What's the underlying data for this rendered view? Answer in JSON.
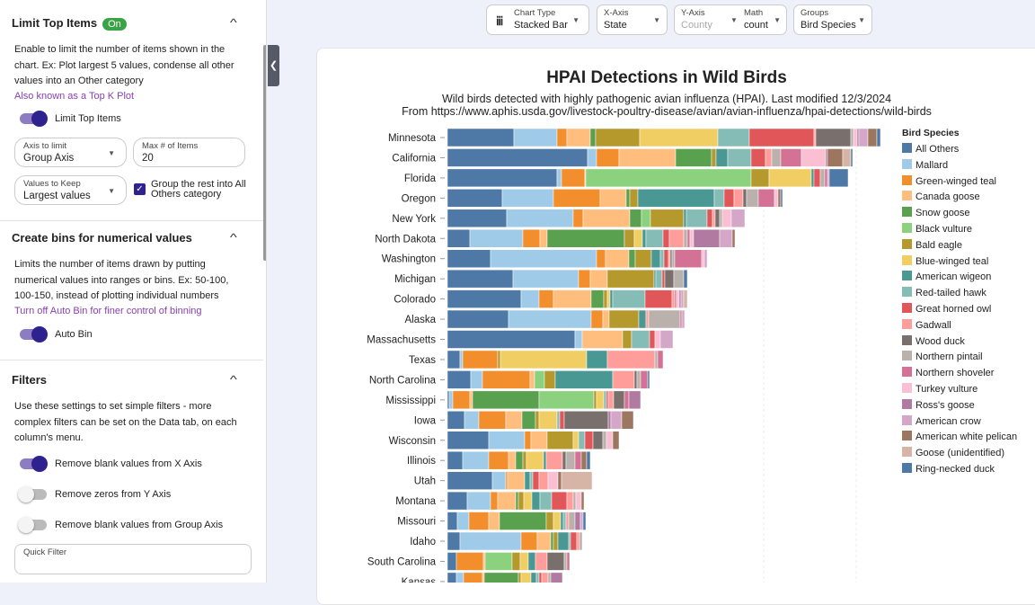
{
  "left_panel": {
    "limit": {
      "title": "Limit Top Items",
      "badge": "On",
      "desc": "Enable to limit the number of items shown in the chart. Ex: Plot largest 5 values, condense all other values into an Other category",
      "link": "Also known as a Top K Plot",
      "toggle_label": "Limit Top Items",
      "toggle_on": true,
      "axis_label": "Axis to limit",
      "axis_value": "Group Axis",
      "max_label": "Max # of Items",
      "max_value": "20",
      "keep_label": "Values to Keep",
      "keep_value": "Largest values",
      "group_rest_label": "Group the rest into All Others category",
      "group_rest_checked": true
    },
    "bins": {
      "title": "Create bins for numerical values",
      "desc": "Limits the number of items drawn by putting numerical values into ranges or bins. Ex: 50-100, 100-150, instead of plotting individual numbers",
      "link": "Turn off Auto Bin for finer control of binning",
      "toggle_label": "Auto Bin",
      "toggle_on": true
    },
    "filters": {
      "title": "Filters",
      "desc": "Use these settings to set simple filters - more complex filters can be set on the Data tab, on each column's menu.",
      "toggles": [
        {
          "label": "Remove blank values from X Axis",
          "on": true
        },
        {
          "label": "Remove zeros from Y Axis",
          "on": false
        },
        {
          "label": "Remove blank values from Group Axis",
          "on": false
        }
      ],
      "quick_filter_label": "Quick Filter"
    }
  },
  "toolbar": {
    "chart_type_label": "Chart Type",
    "chart_type": "Stacked Bar",
    "x_label": "X-Axis",
    "x_value": "State",
    "y_label": "Y-Axis",
    "y_value": "County",
    "math_label": "Math",
    "math_value": "count",
    "groups_label": "Groups",
    "groups_value": "Bird Species"
  },
  "chart_data": {
    "type": "bar",
    "orientation": "horizontal",
    "stacked": true,
    "title": "HPAI Detections in Wild Birds",
    "subtitle": "Wild birds detected with highly pathogenic avian influenza (HPAI). Last modified 12/3/2024",
    "subtitle2": "From https://www.aphis.usda.gov/livestock-poultry-disease/avian/avian-influenza/hpai-detections/wild-birds",
    "legend_title": "Bird Species",
    "legend": "right",
    "categories": [
      "Minnesota",
      "California",
      "Florida",
      "Oregon",
      "New York",
      "North Dakota",
      "Washington",
      "Michigan",
      "Colorado",
      "Alaska",
      "Massachusetts",
      "Texas",
      "North Carolina",
      "Mississippi",
      "Iowa",
      "Wisconsin",
      "Illinois",
      "Utah",
      "Montana",
      "Missouri",
      "Idaho",
      "South Carolina",
      "Kansas"
    ],
    "series": [
      {
        "name": "All Others",
        "color": "#4e79a7"
      },
      {
        "name": "Mallard",
        "color": "#a0cbe8"
      },
      {
        "name": "Green-winged teal",
        "color": "#f28e2b"
      },
      {
        "name": "Canada goose",
        "color": "#ffbe7d"
      },
      {
        "name": "Snow goose",
        "color": "#59a14f"
      },
      {
        "name": "Black vulture",
        "color": "#8cd17d"
      },
      {
        "name": "Bald eagle",
        "color": "#b6992d"
      },
      {
        "name": "Blue-winged teal",
        "color": "#f1ce63"
      },
      {
        "name": "American wigeon",
        "color": "#499894"
      },
      {
        "name": "Red-tailed hawk",
        "color": "#86bcb6"
      },
      {
        "name": "Great horned owl",
        "color": "#e15759"
      },
      {
        "name": "Gadwall",
        "color": "#ff9d9a"
      },
      {
        "name": "Wood duck",
        "color": "#79706e"
      },
      {
        "name": "Northern pintail",
        "color": "#bab0ac"
      },
      {
        "name": "Northern shoveler",
        "color": "#d37295"
      },
      {
        "name": "Turkey vulture",
        "color": "#fabfd2"
      },
      {
        "name": "Ross's goose",
        "color": "#b07aa1"
      },
      {
        "name": "American crow",
        "color": "#d4a6c8"
      },
      {
        "name": "American white pelican",
        "color": "#9d7660"
      },
      {
        "name": "Goose (unidentified)",
        "color": "#d7b5a6"
      },
      {
        "name": "Ring-necked duck",
        "color": "#4e79a7"
      }
    ],
    "values": [
      [
        74,
        48,
        11,
        26,
        6,
        0,
        49,
        87,
        0,
        35,
        72,
        2,
        39,
        3,
        0,
        4,
        2,
        10,
        10,
        0,
        4
      ],
      [
        156,
        10,
        25,
        63,
        40,
        0,
        5,
        0,
        13,
        26,
        16,
        7,
        0,
        10,
        23,
        27,
        2,
        0,
        17,
        9,
        2
      ],
      [
        122,
        5,
        26,
        1,
        0,
        184,
        20,
        47,
        3,
        0,
        7,
        0,
        0,
        5,
        3,
        0,
        0,
        2,
        0,
        0,
        21
      ],
      [
        61,
        57,
        52,
        29,
        4,
        0,
        9,
        0,
        85,
        11,
        11,
        10,
        4,
        13,
        18,
        4,
        0,
        0,
        3,
        0,
        2
      ],
      [
        66,
        74,
        11,
        52,
        13,
        10,
        37,
        0,
        3,
        23,
        6,
        3,
        5,
        3,
        0,
        10,
        0,
        15,
        0,
        0,
        0
      ],
      [
        25,
        59,
        19,
        8,
        86,
        0,
        11,
        9,
        4,
        19,
        7,
        16,
        0,
        4,
        3,
        4,
        29,
        14,
        3,
        0,
        0
      ],
      [
        48,
        118,
        10,
        26,
        7,
        0,
        18,
        0,
        10,
        4,
        5,
        2,
        2,
        3,
        30,
        3,
        0,
        3,
        0,
        0,
        0
      ],
      [
        73,
        73,
        13,
        19,
        0,
        0,
        52,
        0,
        2,
        7,
        3,
        0,
        10,
        11,
        0,
        0,
        0,
        0,
        0,
        0,
        4
      ],
      [
        82,
        20,
        16,
        42,
        14,
        0,
        4,
        3,
        3,
        36,
        30,
        3,
        0,
        0,
        2,
        3,
        2,
        3,
        0,
        4,
        0
      ],
      [
        68,
        92,
        13,
        7,
        0,
        0,
        33,
        0,
        8,
        0,
        0,
        3,
        0,
        35,
        2,
        0,
        0,
        3,
        0,
        0,
        0
      ],
      [
        142,
        8,
        0,
        45,
        0,
        0,
        10,
        0,
        0,
        20,
        6,
        0,
        0,
        0,
        0,
        6,
        0,
        14,
        0,
        0,
        0
      ],
      [
        14,
        3,
        39,
        0,
        0,
        0,
        3,
        96,
        23,
        0,
        0,
        53,
        0,
        3,
        6,
        0,
        0,
        0,
        0,
        0,
        0
      ],
      [
        26,
        13,
        53,
        5,
        0,
        11,
        12,
        0,
        64,
        0,
        0,
        24,
        3,
        4,
        8,
        0,
        0,
        0,
        0,
        0,
        2
      ],
      [
        2,
        4,
        19,
        3,
        74,
        61,
        3,
        8,
        0,
        3,
        2,
        6,
        12,
        0,
        5,
        0,
        13,
        0,
        0,
        0,
        0
      ],
      [
        19,
        16,
        30,
        18,
        15,
        0,
        4,
        20,
        0,
        3,
        5,
        0,
        49,
        0,
        0,
        0,
        3,
        12,
        13,
        0,
        0
      ],
      [
        46,
        40,
        7,
        18,
        0,
        0,
        29,
        6,
        0,
        7,
        9,
        0,
        11,
        4,
        0,
        7,
        0,
        0,
        7,
        0,
        0
      ],
      [
        17,
        29,
        22,
        8,
        8,
        0,
        4,
        19,
        3,
        0,
        0,
        18,
        4,
        10,
        7,
        0,
        0,
        0,
        6,
        0,
        4
      ],
      [
        50,
        15,
        2,
        19,
        0,
        0,
        0,
        0,
        6,
        3,
        7,
        10,
        0,
        0,
        0,
        11,
        0,
        0,
        4,
        34,
        0
      ],
      [
        22,
        26,
        8,
        20,
        3,
        0,
        6,
        9,
        9,
        13,
        17,
        7,
        0,
        3,
        0,
        6,
        0,
        0,
        3,
        0,
        0
      ],
      [
        11,
        13,
        22,
        12,
        52,
        0,
        8,
        8,
        3,
        3,
        0,
        3,
        0,
        7,
        0,
        0,
        6,
        3,
        0,
        0,
        3
      ],
      [
        14,
        68,
        18,
        15,
        3,
        0,
        5,
        0,
        12,
        2,
        7,
        3,
        0,
        3,
        0,
        0,
        0,
        0,
        0,
        0,
        0
      ],
      [
        10,
        0,
        30,
        2,
        0,
        30,
        9,
        9,
        8,
        0,
        0,
        13,
        19,
        3,
        3,
        0,
        0,
        0,
        0,
        0,
        0
      ],
      [
        10,
        8,
        21,
        2,
        38,
        0,
        3,
        11,
        6,
        3,
        3,
        7,
        0,
        3,
        0,
        0,
        13,
        0,
        0,
        0,
        0
      ]
    ]
  }
}
